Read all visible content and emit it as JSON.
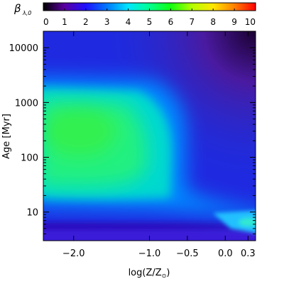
{
  "chart_data": {
    "type": "heatmap",
    "colorbar": {
      "label_symbol": "β",
      "label_subscript": "λ,0",
      "ticks": [
        "0",
        "1",
        "2",
        "3",
        "4",
        "5",
        "6",
        "7",
        "8",
        "9",
        "10"
      ],
      "range": [
        0,
        10
      ],
      "colormap": "rainbow (black → purple → blue → cyan → green → yellow → red)"
    },
    "x_axis": {
      "label_main": "log(Z/Z",
      "label_sub": "⊙",
      "label_close": ")",
      "scale": "linear",
      "range": [
        -2.4,
        0.4
      ],
      "ticks": [
        {
          "value": -2.0,
          "label": "−2.0"
        },
        {
          "value": -1.0,
          "label": "−1.0"
        },
        {
          "value": -0.5,
          "label": "−0.5"
        },
        {
          "value": 0.0,
          "label": "0.0"
        },
        {
          "value": 0.3,
          "label": "0.3"
        }
      ]
    },
    "y_axis": {
      "label_main": "Age",
      "label_unit": "[Myr]",
      "scale": "log",
      "range": [
        3,
        20000
      ],
      "ticks": [
        {
          "value": 10,
          "label": "10"
        },
        {
          "value": 100,
          "label": "100"
        },
        {
          "value": 1000,
          "label": "1000"
        },
        {
          "value": 10000,
          "label": "10000"
        }
      ]
    },
    "features": [
      {
        "region": "broad plateau",
        "logZ": [
          -2.4,
          -0.6
        ],
        "age_myr": [
          15,
          1000
        ],
        "approx_value": 5.5
      },
      {
        "region": "peak",
        "logZ": [
          -2.1,
          -1.8
        ],
        "age_myr": [
          100,
          250
        ],
        "approx_value": 6.0
      },
      {
        "region": "old metal-rich",
        "logZ": [
          0.0,
          0.4
        ],
        "age_myr": [
          3000,
          20000
        ],
        "approx_value": 0.5
      },
      {
        "region": "young high-metallicity spot",
        "logZ": [
          0.2,
          0.4
        ],
        "age_myr": [
          5,
          9
        ],
        "approx_value": 4.5
      }
    ]
  }
}
